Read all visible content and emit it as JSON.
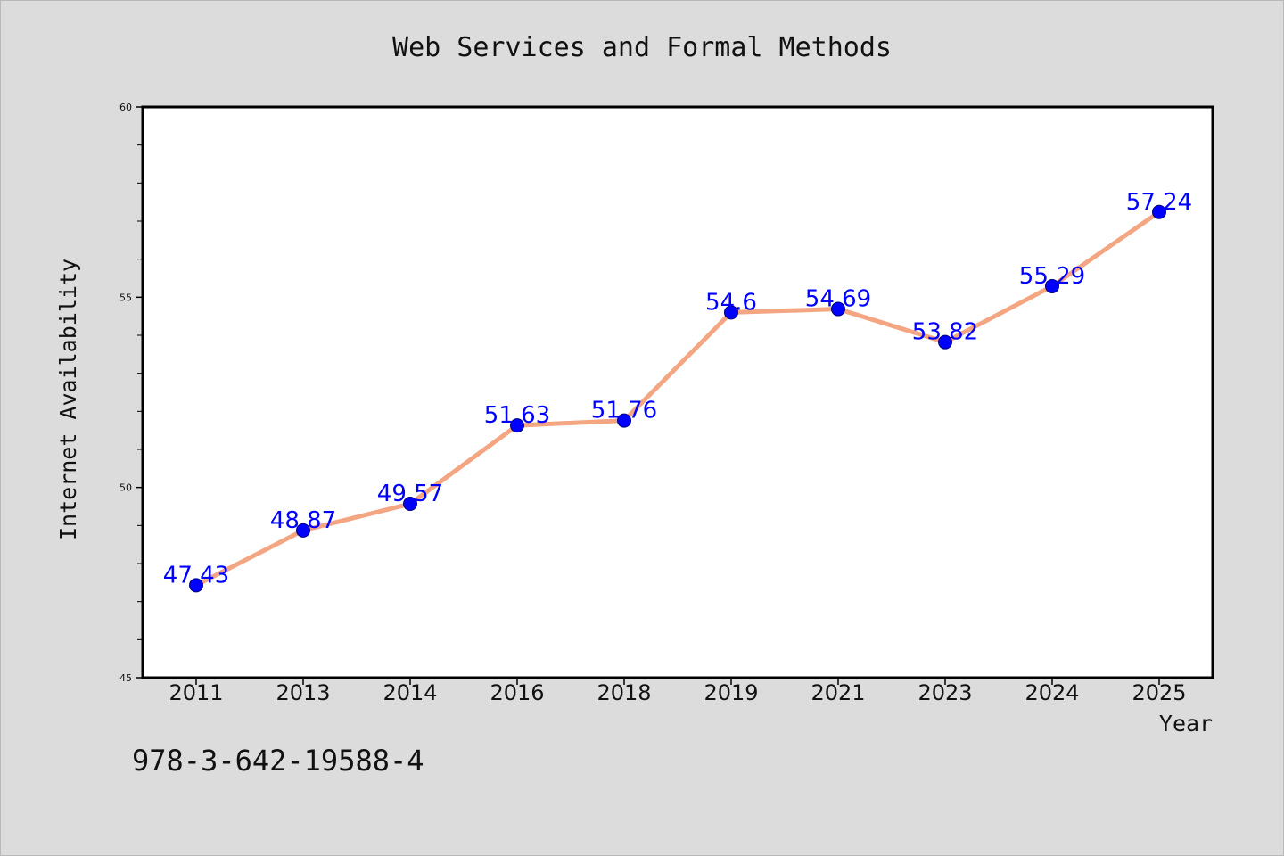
{
  "chart_data": {
    "type": "line",
    "title": "Web Services and Formal Methods",
    "xlabel": "Year",
    "ylabel": "Internet Availability",
    "categories": [
      "2011",
      "2013",
      "2014",
      "2016",
      "2018",
      "2019",
      "2021",
      "2023",
      "2024",
      "2025"
    ],
    "series": [
      {
        "values": [
          47.43,
          48.87,
          49.57,
          51.63,
          51.76,
          54.6,
          54.69,
          53.82,
          55.29,
          57.24
        ]
      }
    ],
    "data_labels": [
      "47.43",
      "48.87",
      "49.57",
      "51.63",
      "51.76",
      "54.6",
      "54.69",
      "53.82",
      "55.29",
      "57.24"
    ],
    "ylim": [
      45,
      60
    ],
    "yticks": [
      "45",
      "50",
      "55",
      "60"
    ],
    "grid": false,
    "legend": "none"
  },
  "footer": {
    "isbn": "978-3-642-19588-4"
  },
  "colors": {
    "background": "#dcdcdc",
    "plot_background": "#ffffff",
    "line": "#f4a582",
    "marker": "#0000ff",
    "data_label": "#0000ff"
  }
}
